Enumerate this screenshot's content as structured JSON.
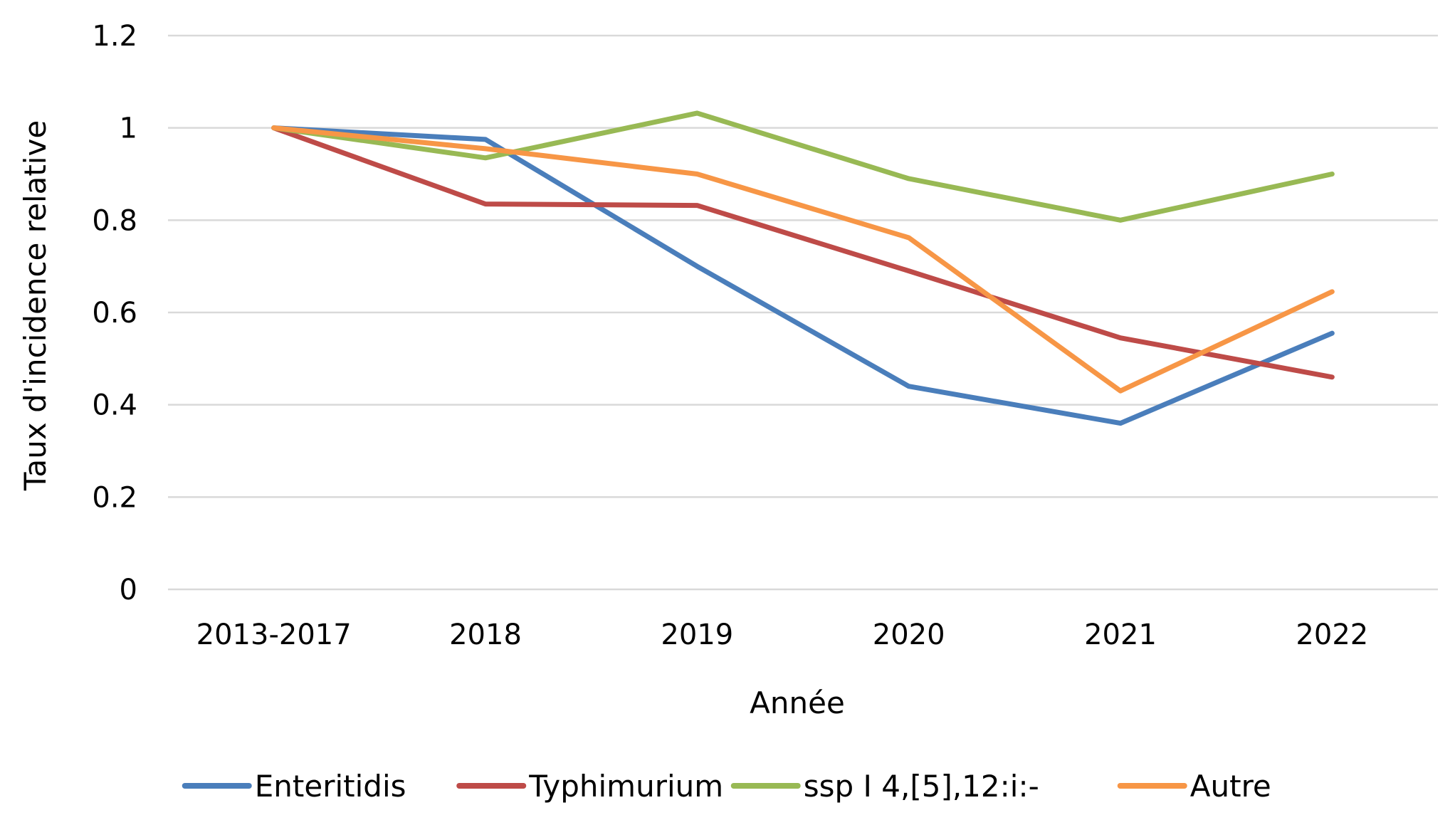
{
  "chart_data": {
    "type": "line",
    "title": "",
    "xlabel": "Année",
    "ylabel": "Taux d'incidence relative",
    "categories": [
      "2013-2017",
      "2018",
      "2019",
      "2020",
      "2021",
      "2022"
    ],
    "ylim": [
      0,
      1.2
    ],
    "yticks": [
      "0",
      "0.2",
      "0.4",
      "0.6",
      "0.8",
      "1",
      "1.2"
    ],
    "grid": true,
    "legend_position": "bottom",
    "series": [
      {
        "name": "Enteritidis",
        "color": "#4a7ebb",
        "values": [
          1.0,
          0.975,
          0.7,
          0.44,
          0.36,
          0.555
        ]
      },
      {
        "name": "Typhimurium",
        "color": "#be4b48",
        "values": [
          1.0,
          0.835,
          0.832,
          0.69,
          0.545,
          0.46
        ]
      },
      {
        "name": "ssp I 4,[5],12:i:-",
        "color": "#98b954",
        "values": [
          1.0,
          0.935,
          1.032,
          0.89,
          0.8,
          0.9
        ]
      },
      {
        "name": "Autre",
        "color": "#f79646",
        "values": [
          1.0,
          0.955,
          0.9,
          0.762,
          0.43,
          0.645
        ]
      }
    ]
  }
}
